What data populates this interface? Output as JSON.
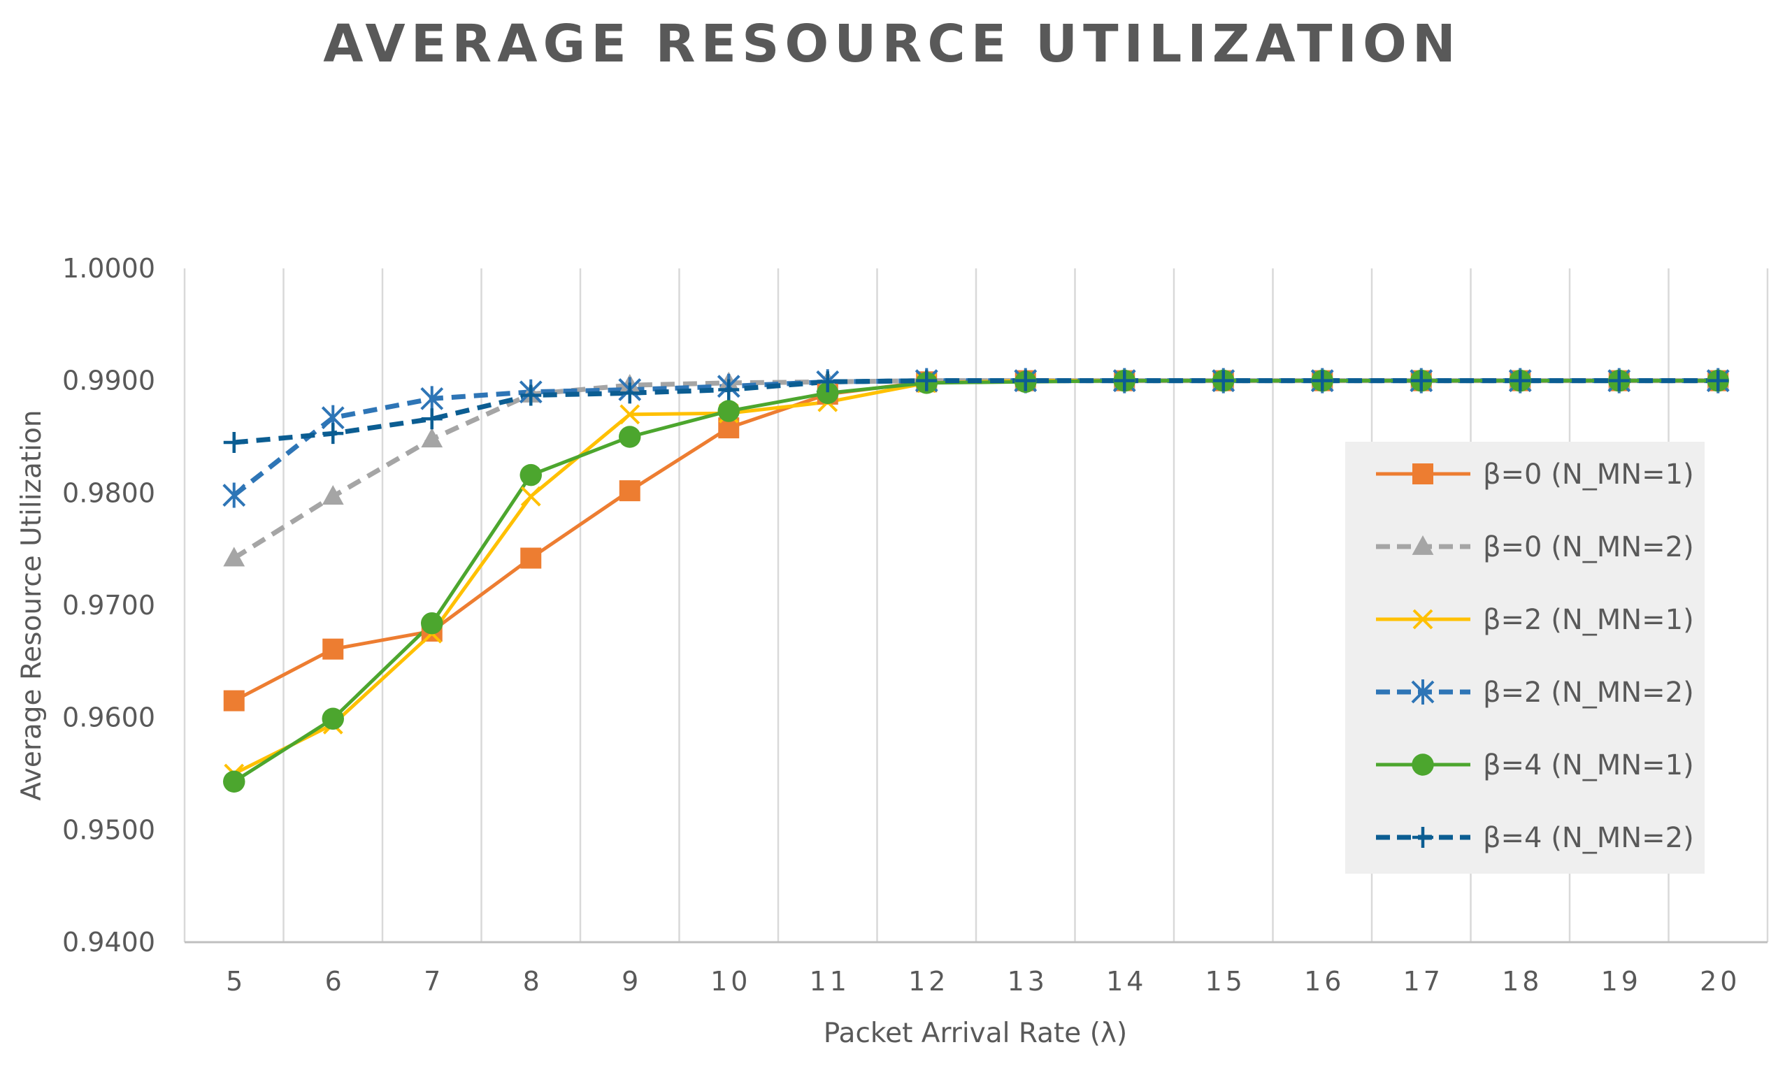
{
  "chart_data": {
    "type": "line",
    "title": "AVERAGE RESOURCE UTILIZATION",
    "xlabel": "Packet Arrival Rate  (λ)",
    "ylabel": "Average Resource Utilization",
    "categories": [
      "5",
      "6",
      "7",
      "8",
      "9",
      "10",
      "11",
      "12",
      "13",
      "14",
      "15",
      "16",
      "17",
      "18",
      "19",
      "20"
    ],
    "ylim": [
      0.94,
      1.0
    ],
    "yticks": [
      "0.9400",
      "0.9500",
      "0.9600",
      "0.9700",
      "0.9800",
      "0.9900",
      "1.0000"
    ],
    "ytick_values": [
      0.94,
      0.95,
      0.96,
      0.97,
      0.98,
      0.99,
      1.0
    ],
    "grid": "vertical",
    "legend_position": "right",
    "series": [
      {
        "name": "β=0 (N_MN=1)",
        "color": "#ED7D31",
        "dash": "solid",
        "marker": "square",
        "values": [
          0.9615,
          0.9661,
          0.9677,
          0.9742,
          0.9802,
          0.9858,
          0.9888,
          0.9899,
          0.99,
          0.99,
          0.99,
          0.99,
          0.99,
          0.99,
          0.99,
          0.99
        ]
      },
      {
        "name": "β=0 (N_MN=2)",
        "color": "#A5A5A5",
        "dash": "dashed",
        "marker": "triangle",
        "values": [
          0.9742,
          0.9797,
          0.9848,
          0.9888,
          0.9896,
          0.9898,
          0.9899,
          0.99,
          0.99,
          0.99,
          0.99,
          0.99,
          0.99,
          0.99,
          0.99,
          0.99
        ]
      },
      {
        "name": "β=2 (N_MN=1)",
        "color": "#FFC000",
        "dash": "solid",
        "marker": "x",
        "values": [
          0.955,
          0.9594,
          0.9675,
          0.9797,
          0.987,
          0.9871,
          0.9881,
          0.9898,
          0.99,
          0.99,
          0.99,
          0.99,
          0.99,
          0.99,
          0.99,
          0.99
        ]
      },
      {
        "name": "β=2 (N_MN=2)",
        "color": "#2E75B6",
        "dash": "dashed",
        "marker": "star",
        "values": [
          0.9798,
          0.9867,
          0.9884,
          0.989,
          0.9892,
          0.9895,
          0.9899,
          0.99,
          0.99,
          0.99,
          0.99,
          0.99,
          0.99,
          0.99,
          0.99,
          0.99
        ]
      },
      {
        "name": "β=4 (N_MN=1)",
        "color": "#4CA62E",
        "dash": "solid",
        "marker": "circle",
        "values": [
          0.9543,
          0.9599,
          0.9684,
          0.9816,
          0.985,
          0.9873,
          0.9889,
          0.9898,
          0.9899,
          0.99,
          0.99,
          0.99,
          0.99,
          0.99,
          0.99,
          0.99
        ]
      },
      {
        "name": "β=4 (N_MN=2)",
        "color": "#0B5D92",
        "dash": "dashed",
        "marker": "plus",
        "values": [
          0.9845,
          0.9853,
          0.9866,
          0.9887,
          0.9889,
          0.9892,
          0.9899,
          0.99,
          0.99,
          0.99,
          0.99,
          0.99,
          0.99,
          0.99,
          0.99,
          0.99
        ]
      }
    ]
  }
}
